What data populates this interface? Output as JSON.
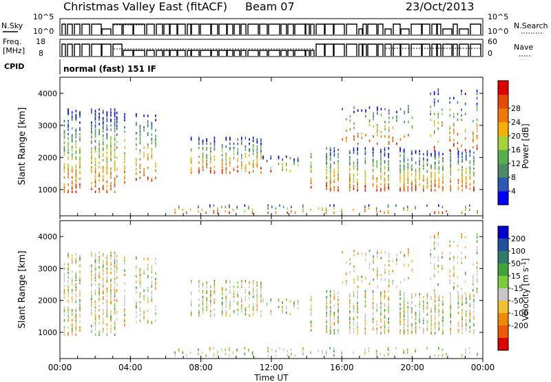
{
  "header": {
    "title": "Christmas Valley East (fitACF)",
    "beam": "Beam 07",
    "date": "23/Oct/2013"
  },
  "status_panels": {
    "nsky_label": "N.Sky",
    "nsky_ticks": [
      "10^5",
      "10^0"
    ],
    "freq_label_line1": "Freq.",
    "freq_label_line2": "[MHz]",
    "freq_ticks": [
      "18",
      "8"
    ],
    "cpid_label": "CPID",
    "cpid_value": "normal (fast) 151 IF",
    "nsearch_label": "N.Search",
    "nsearch_ticks": [
      "10^5",
      "10^0"
    ],
    "nave_label": "Nave",
    "nave_ticks": [
      "60",
      "0"
    ]
  },
  "chart_data": [
    {
      "type": "heatmap",
      "name": "power",
      "ylabel": "Slant Range [km]",
      "xlabel": "",
      "x_ticks": [
        "00:00",
        "04:00",
        "08:00",
        "12:00",
        "16:00",
        "20:00",
        "00:00"
      ],
      "xlim_hours": [
        0,
        24
      ],
      "ylim": [
        180,
        4500
      ],
      "y_ticks": [
        1000,
        2000,
        3000,
        4000
      ],
      "colorbar": {
        "label": "Power [dB]",
        "ticks": [
          "4",
          "8",
          "12",
          "16",
          "20",
          "24",
          "28"
        ],
        "colors": [
          "#0000ff",
          "#2d58b4",
          "#4e8a6a",
          "#57b04a",
          "#a6d23a",
          "#f6b000",
          "#f07a00",
          "#e84b00",
          "#e00000"
        ]
      }
    },
    {
      "type": "heatmap",
      "name": "velocity",
      "ylabel": "Slant Range [km]",
      "xlabel": "Time UT",
      "x_ticks": [
        "00:00",
        "04:00",
        "08:00",
        "12:00",
        "16:00",
        "20:00",
        "00:00"
      ],
      "xlim_hours": [
        0,
        24
      ],
      "ylim": [
        180,
        4500
      ],
      "y_ticks": [
        1000,
        2000,
        3000,
        4000
      ],
      "colorbar": {
        "label": "Velocity [m s^-1]",
        "ticks": [
          "200",
          "100",
          "50",
          "15",
          "-15",
          "-50",
          "-100",
          "-200"
        ],
        "colors": [
          "#0000d0",
          "#2050a0",
          "#2f7a6a",
          "#3ea33a",
          "#7ccc3a",
          "#c8c8c8",
          "#f0c030",
          "#f08a00",
          "#ee5a00",
          "#e00000"
        ]
      }
    }
  ]
}
